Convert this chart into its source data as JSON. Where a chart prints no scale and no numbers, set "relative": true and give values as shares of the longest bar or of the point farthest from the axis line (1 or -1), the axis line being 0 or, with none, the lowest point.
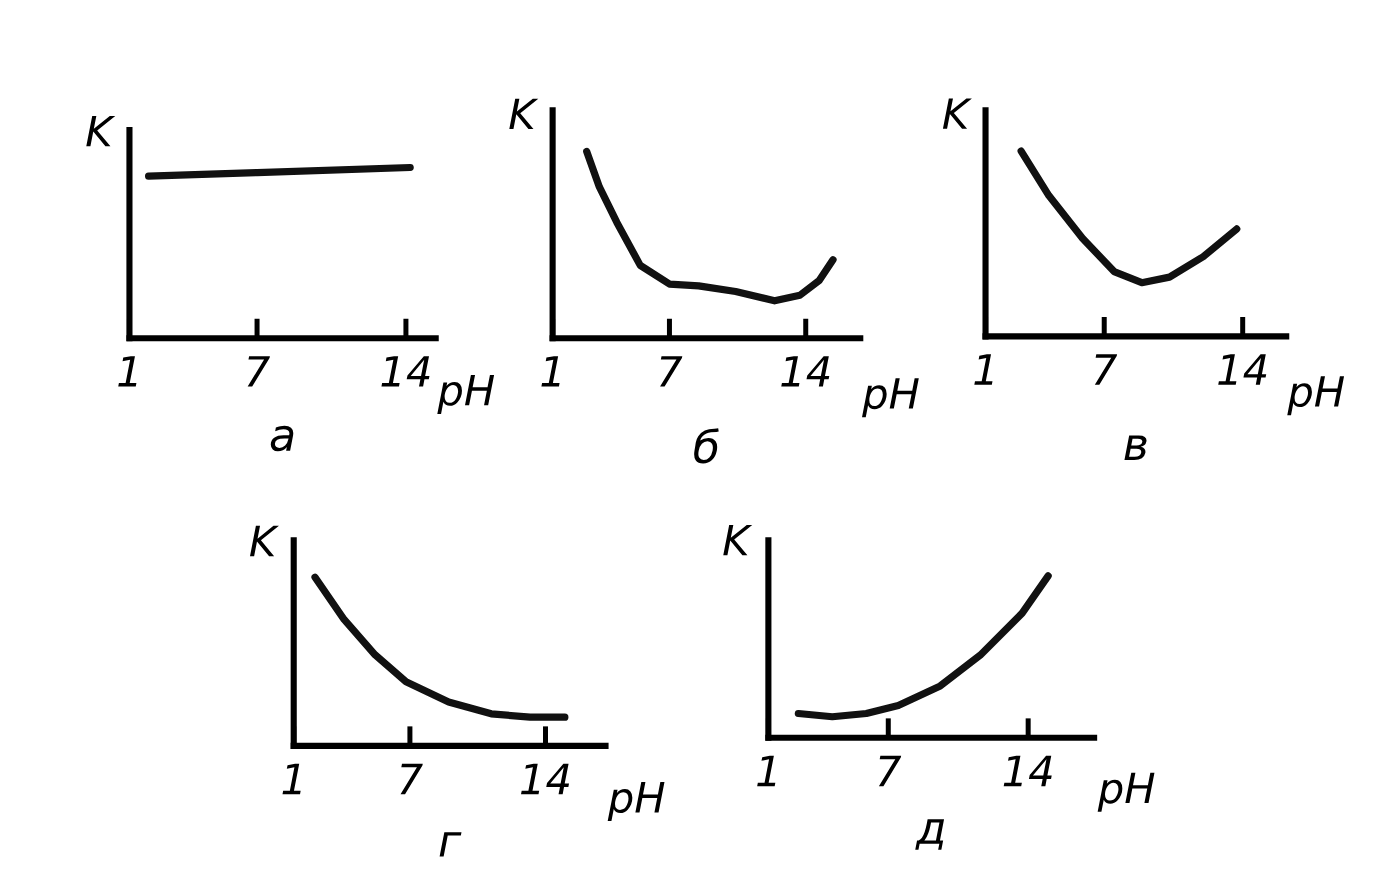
{
  "chart_data": [
    {
      "type": "line",
      "title": "а",
      "xlabel": "pH",
      "ylabel": "K",
      "relative": true,
      "xlim": [
        1,
        15.4
      ],
      "xticks": [
        1,
        7,
        14
      ],
      "grid": false,
      "legend": false,
      "marker": "none",
      "line_style": "solid",
      "series": [
        {
          "color": "#111111",
          "x": [
            1.9,
            7,
            14.2
          ],
          "values": [
            0.95,
            0.97,
            1
          ]
        }
      ]
    },
    {
      "type": "line",
      "title": "б",
      "xlabel": "pH",
      "ylabel": "K",
      "relative": true,
      "xlim": [
        1,
        16.8
      ],
      "xticks": [
        1,
        7,
        14
      ],
      "grid": false,
      "legend": false,
      "marker": "none",
      "line_style": "solid",
      "series": [
        {
          "color": "#111111",
          "x": [
            2.75,
            3.4,
            4.3,
            5.5,
            7,
            8.5,
            10.4,
            12.4,
            13.7,
            14.7,
            15.4
          ],
          "values": [
            1,
            0.81,
            0.62,
            0.39,
            0.29,
            0.28,
            0.25,
            0.2,
            0.23,
            0.31,
            0.42
          ]
        }
      ]
    },
    {
      "type": "line",
      "title": "в",
      "xlabel": "pH",
      "ylabel": "K",
      "relative": true,
      "xlim": [
        1,
        16.2
      ],
      "xticks": [
        1,
        7,
        14
      ],
      "grid": false,
      "legend": false,
      "marker": "none",
      "line_style": "solid",
      "series": [
        {
          "color": "#111111",
          "x": [
            2.8,
            4.2,
            5.9,
            7.5,
            8.9,
            10.3,
            12,
            13.7
          ],
          "values": [
            1,
            0.76,
            0.53,
            0.35,
            0.29,
            0.32,
            0.43,
            0.58
          ]
        }
      ]
    },
    {
      "type": "line",
      "title": "г",
      "xlabel": "pH",
      "ylabel": "K",
      "relative": true,
      "xlim": [
        1,
        17.1
      ],
      "xticks": [
        1,
        7,
        14
      ],
      "grid": false,
      "legend": false,
      "marker": "none",
      "line_style": "solid",
      "series": [
        {
          "color": "#111111",
          "x": [
            2.1,
            3.6,
            5.2,
            6.8,
            9.0,
            11.2,
            13.2,
            15.0
          ],
          "values": [
            1,
            0.75,
            0.54,
            0.38,
            0.26,
            0.19,
            0.17,
            0.17
          ]
        }
      ]
    },
    {
      "type": "line",
      "title": "д",
      "xlabel": "pH",
      "ylabel": "K",
      "relative": true,
      "xlim": [
        1,
        17.3
      ],
      "xticks": [
        1,
        7,
        14
      ],
      "grid": false,
      "legend": false,
      "marker": "none",
      "line_style": "solid",
      "series": [
        {
          "color": "#111111",
          "x": [
            2.5,
            4.2,
            5.9,
            7.5,
            9.6,
            11.6,
            13.7,
            15.0
          ],
          "values": [
            0.15,
            0.13,
            0.15,
            0.2,
            0.32,
            0.51,
            0.77,
            1
          ]
        }
      ]
    }
  ]
}
